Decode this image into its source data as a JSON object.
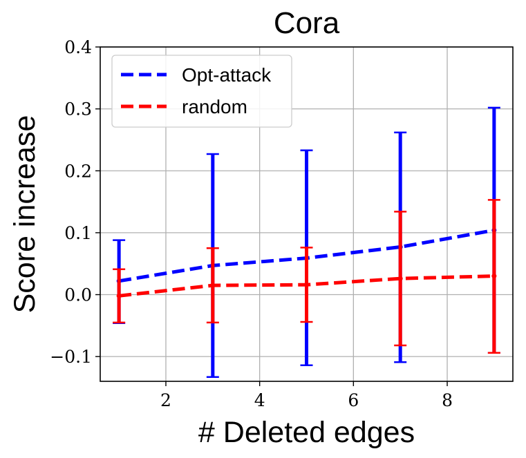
{
  "chart_data": {
    "type": "line",
    "title": "Cora",
    "xlabel": "# Deleted edges",
    "ylabel": "Score increase",
    "xlim": [
      0.6,
      9.4
    ],
    "ylim": [
      -0.14,
      0.4
    ],
    "xticks": [
      2,
      4,
      6,
      8
    ],
    "xtick_labels": [
      "2",
      "4",
      "6",
      "8"
    ],
    "yticks": [
      -0.1,
      0.0,
      0.1,
      0.2,
      0.3,
      0.4
    ],
    "ytick_labels": [
      "−0.1",
      "0.0",
      "0.1",
      "0.2",
      "0.3",
      "0.4"
    ],
    "grid": true,
    "legend_position": "top-left",
    "series": [
      {
        "name": "Opt-attack",
        "color": "#0000ff",
        "line_style": "dashed",
        "x": [
          1,
          3,
          5,
          7,
          9
        ],
        "y": [
          0.022,
          0.047,
          0.059,
          0.077,
          0.104
        ],
        "err_low": [
          -0.046,
          -0.133,
          -0.114,
          -0.109,
          -0.094
        ],
        "err_high": [
          0.088,
          0.227,
          0.233,
          0.262,
          0.302
        ]
      },
      {
        "name": "random",
        "color": "#ff0000",
        "line_style": "dashed",
        "x": [
          1,
          3,
          5,
          7,
          9
        ],
        "y": [
          -0.002,
          0.015,
          0.016,
          0.026,
          0.03
        ],
        "err_low": [
          -0.045,
          -0.045,
          -0.044,
          -0.082,
          -0.094
        ],
        "err_high": [
          0.041,
          0.075,
          0.076,
          0.134,
          0.153
        ]
      }
    ]
  }
}
